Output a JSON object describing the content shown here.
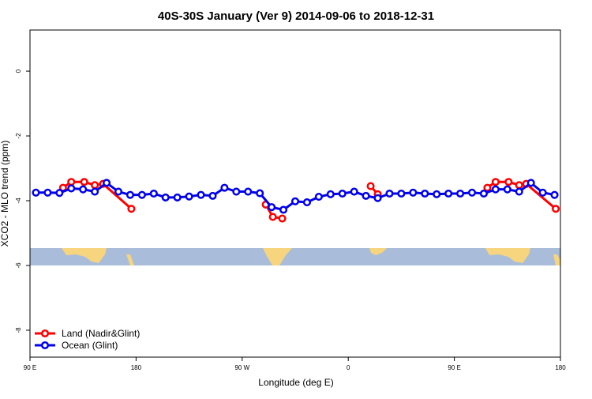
{
  "chart_data": {
    "type": "line",
    "title": "40S-30S January (Ver 9)   2014-09-06 to 2018-12-31",
    "xlabel": "Longitude (deg E)",
    "ylabel": "XCO2 - MLO trend (ppm)",
    "xlim": [
      90,
      540
    ],
    "ylim": [
      -8.83,
      1.27
    ],
    "xticks": [
      {
        "value": 90,
        "label": "90 E"
      },
      180,
      {
        "value": 270,
        "label": "90 W"
      },
      {
        "value": 360,
        "label": "0"
      },
      {
        "value": 450,
        "label": "90 E"
      },
      {
        "value": 540,
        "label": "180"
      }
    ],
    "yticks": [
      0,
      -2,
      -4,
      -6,
      -8
    ],
    "legend": "bottom-left",
    "series": [
      {
        "name": "Land (Nadir&Glint)",
        "color": "#ff0000",
        "x": [
          118,
          125,
          136,
          145,
          152,
          176,
          null,
          290,
          296,
          304,
          null,
          379,
          385,
          null,
          478,
          485,
          496,
          505,
          511,
          536
        ],
        "values": [
          -3.6,
          -3.42,
          -3.42,
          -3.52,
          -3.48,
          -4.25,
          null,
          -4.12,
          -4.5,
          -4.55,
          null,
          -3.55,
          -3.8,
          null,
          -3.6,
          -3.42,
          -3.42,
          -3.52,
          -3.48,
          -4.25
        ]
      },
      {
        "name": "Ocean (Glint)",
        "color": "#0000ee",
        "x": [
          95,
          105,
          115,
          125,
          135,
          145,
          155,
          165,
          175,
          185,
          195,
          205,
          215,
          225,
          235,
          245,
          255,
          265,
          275,
          285,
          295,
          305,
          315,
          325,
          335,
          345,
          355,
          365,
          375,
          385,
          395,
          405,
          415,
          425,
          435,
          445,
          455,
          465,
          475,
          485,
          495,
          505,
          515,
          525,
          535
        ],
        "values": [
          -3.75,
          -3.75,
          -3.76,
          -3.62,
          -3.65,
          -3.72,
          -3.45,
          -3.72,
          -3.82,
          -3.82,
          -3.78,
          -3.9,
          -3.9,
          -3.87,
          -3.82,
          -3.85,
          -3.6,
          -3.72,
          -3.72,
          -3.77,
          -4.2,
          -4.28,
          -4.02,
          -4.05,
          -3.88,
          -3.8,
          -3.78,
          -3.72,
          -3.85,
          -3.92,
          -3.78,
          -3.78,
          -3.75,
          -3.78,
          -3.8,
          -3.78,
          -3.78,
          -3.75,
          -3.78,
          -3.65,
          -3.65,
          -3.72,
          -3.45,
          -3.75,
          -3.82
        ]
      }
    ]
  }
}
